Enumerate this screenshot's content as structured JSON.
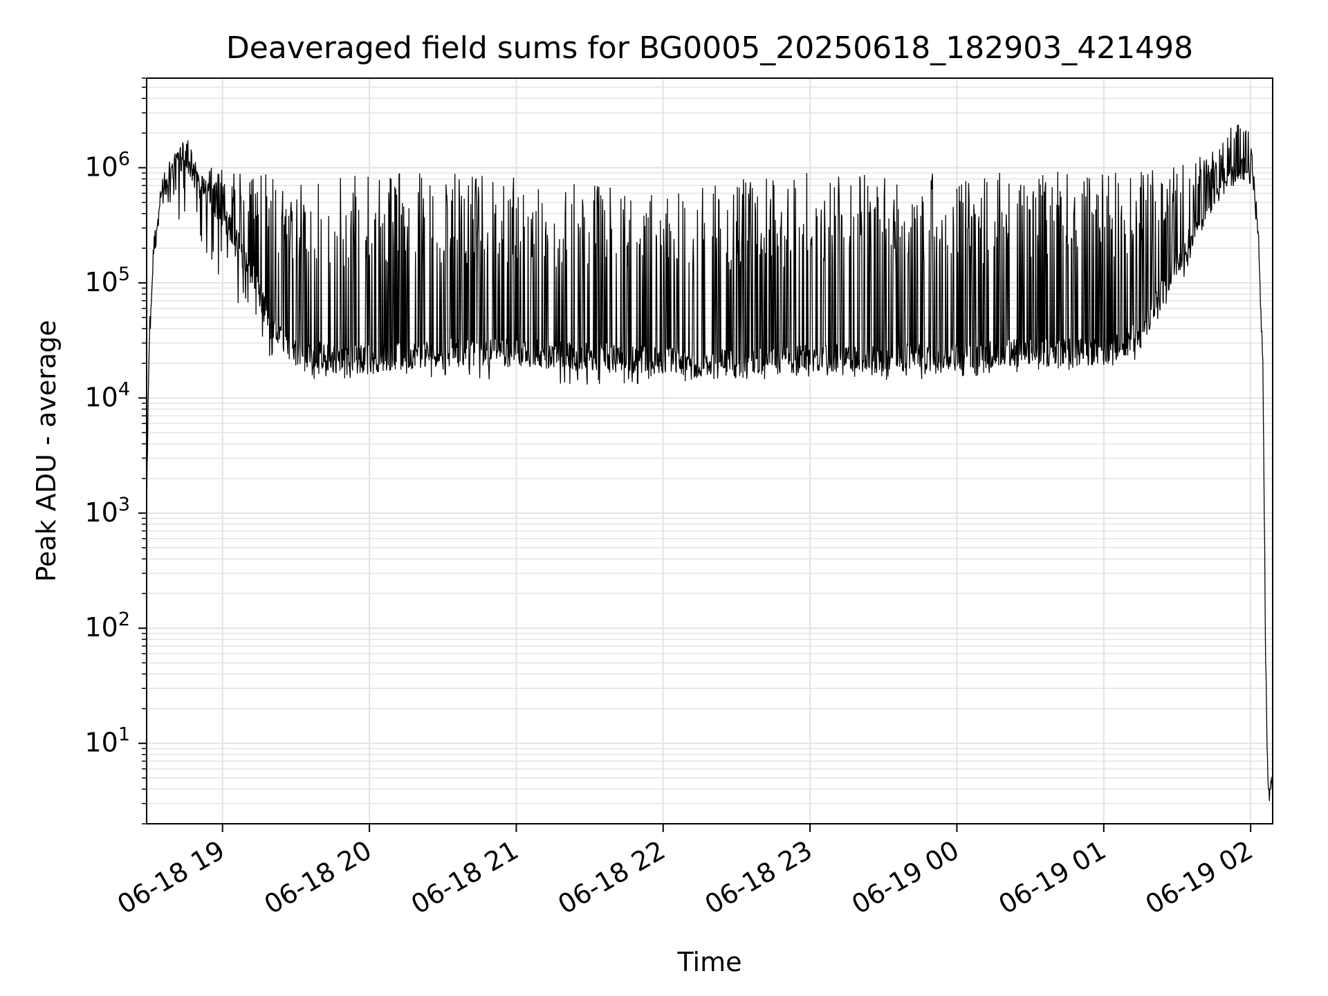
{
  "chart_data": {
    "type": "line",
    "title": "Deaveraged field sums for BG0005_20250618_182903_421498",
    "xlabel": "Time",
    "ylabel": "Peak ADU - average",
    "yscale": "log",
    "ylim": [
      2,
      6000000
    ],
    "xlim": [
      "2025-06-18 18:29",
      "2025-06-19 02:09"
    ],
    "grid": "major and minor, light gray",
    "legend": "none",
    "line_color": "#000000",
    "x_tick_labels": [
      "06-18 19",
      "06-18 20",
      "06-18 21",
      "06-18 22",
      "06-18 23",
      "06-19 00",
      "06-19 01",
      "06-19 02"
    ],
    "x_ticks": [
      "2025-06-18 19:00",
      "2025-06-18 20:00",
      "2025-06-18 21:00",
      "2025-06-18 22:00",
      "2025-06-18 23:00",
      "2025-06-19 00:00",
      "2025-06-19 01:00",
      "2025-06-19 02:00"
    ],
    "y_tick_labels": [
      {
        "value": 10,
        "base": "10",
        "exp": "1"
      },
      {
        "value": 100,
        "base": "10",
        "exp": "2"
      },
      {
        "value": 1000,
        "base": "10",
        "exp": "3"
      },
      {
        "value": 10000,
        "base": "10",
        "exp": "4"
      },
      {
        "value": 100000,
        "base": "10",
        "exp": "5"
      },
      {
        "value": 1000000,
        "base": "10",
        "exp": "6"
      }
    ],
    "series": [
      {
        "x": [
          "2025-06-18 18:29",
          "2025-06-18 18:30",
          "2025-06-18 18:32",
          "2025-06-18 18:35",
          "2025-06-18 18:40",
          "2025-06-18 18:45",
          "2025-06-18 18:50",
          "2025-06-18 19:00",
          "2025-06-18 19:10",
          "2025-06-18 19:20",
          "2025-06-18 19:30",
          "2025-06-18 19:45",
          "2025-06-18 20:00",
          "2025-06-18 20:30",
          "2025-06-18 21:00",
          "2025-06-18 21:30",
          "2025-06-18 22:00",
          "2025-06-18 22:30",
          "2025-06-18 23:00",
          "2025-06-18 23:30",
          "2025-06-19 00:00",
          "2025-06-19 00:30",
          "2025-06-19 01:00",
          "2025-06-19 01:15",
          "2025-06-19 01:30",
          "2025-06-19 01:45",
          "2025-06-19 01:55",
          "2025-06-19 02:00",
          "2025-06-19 02:03",
          "2025-06-19 02:05",
          "2025-06-19 02:06",
          "2025-06-19 02:07",
          "2025-06-19 02:08",
          "2025-06-19 02:09"
        ],
        "y": [
          1000,
          30000,
          200000,
          600000,
          1000000,
          1100000,
          700000,
          400000,
          150000,
          40000,
          25000,
          22000,
          22000,
          25000,
          25000,
          23000,
          21000,
          20000,
          22000,
          22000,
          23000,
          25000,
          25000,
          35000,
          150000,
          600000,
          1000000,
          900000,
          300000,
          20000,
          100,
          4,
          4,
          4
        ],
        "spike_max": [
          1000,
          30000,
          200000,
          600000,
          1200000,
          2000000,
          1000000,
          1000000,
          900000,
          900000,
          850000,
          900000,
          900000,
          900000,
          850000,
          750000,
          600000,
          800000,
          950000,
          900000,
          900000,
          950000,
          900000,
          1000000,
          1200000,
          1400000,
          3000000,
          2700000,
          300000,
          20000,
          100,
          4,
          4,
          4
        ],
        "spike_min": [
          1000,
          30000,
          200000,
          500000,
          500000,
          180000,
          250000,
          100000,
          50000,
          18000,
          15000,
          14000,
          16000,
          15000,
          14000,
          12000,
          13000,
          14000,
          15000,
          14000,
          15000,
          17000,
          18000,
          22000,
          80000,
          400000,
          800000,
          900000,
          300000,
          20000,
          100,
          4,
          4,
          4
        ]
      }
    ]
  }
}
